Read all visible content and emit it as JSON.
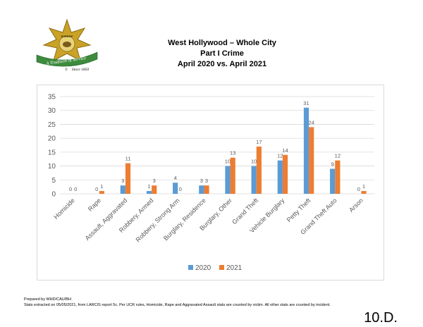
{
  "header": {
    "logo_text_top": "SHERIFF",
    "logo_ribbon": "A Tradition of Service",
    "logo_since": "Since 1850",
    "title_line1": "West Hollywood – Whole City",
    "title_line2": "Part I Crime",
    "title_line3": "April 2020 vs. April 2021"
  },
  "colors": {
    "series_2020": "#5b9bd5",
    "series_2021": "#ed7d31",
    "grid": "#d9d9d9",
    "star_gold": "#c9a227",
    "ribbon_green": "#3d8b3d"
  },
  "chart_data": {
    "type": "bar",
    "title": "",
    "xlabel": "",
    "ylabel": "",
    "ylim": [
      0,
      35
    ],
    "yticks": [
      0,
      5,
      10,
      15,
      20,
      25,
      30,
      35
    ],
    "grid": true,
    "legend_position": "bottom",
    "categories": [
      "Homicide",
      "Rape",
      "Assault, Aggravated",
      "Robbery, Armed",
      "Robbery, Strong Arm",
      "Burglary, Residence",
      "Burglary, Other",
      "Grand Theft",
      "Vehicle Burglary",
      "Petty Theft",
      "Grand Theft Auto",
      "Arson"
    ],
    "series": [
      {
        "name": "2020",
        "values": [
          0,
          0,
          3,
          1,
          4,
          3,
          10,
          10,
          12,
          31,
          9,
          0
        ]
      },
      {
        "name": "2021",
        "values": [
          0,
          1,
          11,
          3,
          0,
          3,
          13,
          17,
          14,
          24,
          12,
          1
        ]
      }
    ]
  },
  "footer": {
    "prepared_by": "Prepared by WHD/CAU/BH",
    "note": "Stats extracted on 05/05/2021, from LARCIS report 5c. Per UCR rules, Homicide, Rape and Aggravated Assault stats are counted by victim. All other stats are counted by incident.",
    "page_number": "10.D."
  }
}
